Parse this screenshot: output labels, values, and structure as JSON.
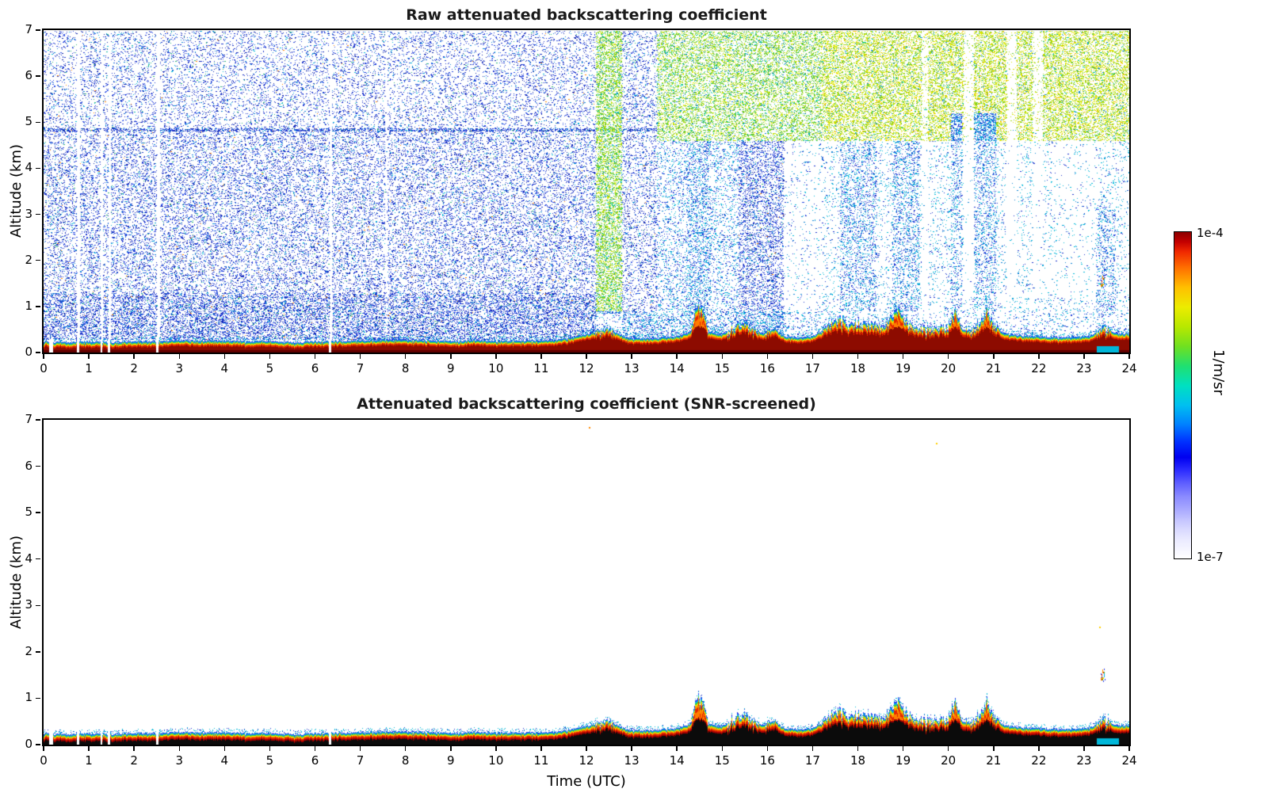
{
  "figure": {
    "background": "#ffffff"
  },
  "chart_data": {
    "type": "heatmap",
    "panels": [
      {
        "title": "Raw attenuated backscattering coefficient"
      },
      {
        "title": "Attenuated backscattering coefficient (SNR-screened)"
      }
    ],
    "x_axis": {
      "label": "Time (UTC)",
      "min": 0,
      "max": 24,
      "ticks": [
        0,
        1,
        2,
        3,
        4,
        5,
        6,
        7,
        8,
        9,
        10,
        11,
        12,
        13,
        14,
        15,
        16,
        17,
        18,
        19,
        20,
        21,
        22,
        23,
        24
      ]
    },
    "y_axis": {
      "label": "Altitude (km)",
      "min": 0,
      "max": 7,
      "ticks": [
        0,
        1,
        2,
        3,
        4,
        5,
        6,
        7
      ]
    },
    "colorbar": {
      "units": "1/m/sr",
      "min_label": "1e-7",
      "max_label": "1e-4",
      "scale": "log",
      "stops": [
        {
          "pos": 0,
          "color": "#ffffff"
        },
        {
          "pos": 3,
          "color": "#f4f4ff"
        },
        {
          "pos": 6,
          "color": "#e9e9ff"
        },
        {
          "pos": 9,
          "color": "#d8d8ff"
        },
        {
          "pos": 12,
          "color": "#c3c3ff"
        },
        {
          "pos": 15,
          "color": "#a9a9ff"
        },
        {
          "pos": 19,
          "color": "#8a8aff"
        },
        {
          "pos": 23,
          "color": "#5f5fff"
        },
        {
          "pos": 27,
          "color": "#2d2dff"
        },
        {
          "pos": 31,
          "color": "#0000f0"
        },
        {
          "pos": 36,
          "color": "#0033ff"
        },
        {
          "pos": 41,
          "color": "#0080ff"
        },
        {
          "pos": 47,
          "color": "#00c0f0"
        },
        {
          "pos": 53,
          "color": "#00e0c0"
        },
        {
          "pos": 59,
          "color": "#20e070"
        },
        {
          "pos": 65,
          "color": "#70e020"
        },
        {
          "pos": 71,
          "color": "#b8e800"
        },
        {
          "pos": 77,
          "color": "#ecec00"
        },
        {
          "pos": 83,
          "color": "#ffc000"
        },
        {
          "pos": 89,
          "color": "#ff7000"
        },
        {
          "pos": 94,
          "color": "#f02800"
        },
        {
          "pos": 97,
          "color": "#c40000"
        },
        {
          "pos": 100,
          "color": "#8b0000"
        }
      ]
    },
    "surface_layer": {
      "t": [
        0,
        0.5,
        1,
        1.5,
        2,
        2.5,
        3,
        3.5,
        4,
        4.5,
        5,
        5.5,
        6,
        6.5,
        7,
        7.5,
        8,
        8.5,
        9,
        9.5,
        10,
        10.5,
        11,
        11.4,
        11.8,
        12.1,
        12.35,
        12.6,
        12.9,
        13.2,
        13.6,
        14,
        14.3,
        14.45,
        14.55,
        14.7,
        15,
        15.3,
        15.5,
        15.7,
        15.9,
        16.1,
        16.4,
        16.7,
        17,
        17.3,
        17.55,
        17.8,
        18,
        18.3,
        18.6,
        18.9,
        19.05,
        19.2,
        19.5,
        19.8,
        20,
        20.15,
        20.3,
        20.5,
        20.7,
        20.85,
        21,
        21.2,
        21.5,
        22,
        22.5,
        23,
        23.2,
        23.4,
        23.6,
        23.8,
        24
      ],
      "top_km": [
        0.25,
        0.22,
        0.24,
        0.22,
        0.25,
        0.24,
        0.27,
        0.25,
        0.26,
        0.24,
        0.25,
        0.22,
        0.24,
        0.25,
        0.26,
        0.28,
        0.28,
        0.26,
        0.25,
        0.26,
        0.25,
        0.25,
        0.26,
        0.28,
        0.35,
        0.42,
        0.5,
        0.45,
        0.32,
        0.3,
        0.32,
        0.35,
        0.45,
        1.05,
        0.95,
        0.45,
        0.4,
        0.55,
        0.62,
        0.5,
        0.42,
        0.52,
        0.35,
        0.32,
        0.35,
        0.55,
        0.72,
        0.62,
        0.65,
        0.58,
        0.62,
        1.0,
        0.7,
        0.55,
        0.5,
        0.52,
        0.55,
        0.92,
        0.55,
        0.48,
        0.6,
        0.95,
        0.6,
        0.42,
        0.38,
        0.35,
        0.32,
        0.35,
        0.38,
        0.55,
        0.45,
        0.4,
        0.42
      ]
    },
    "gap_times": [
      0.14,
      0.18,
      0.76,
      1.28,
      1.45,
      2.52,
      6.34
    ],
    "gap_width": 0.05,
    "band": {
      "edges": [
        [
          "#2a3cf0",
          0.015
        ],
        [
          "#00b4e8",
          0.013
        ],
        [
          "#3ecb3e",
          0.01
        ],
        [
          "#e8e800",
          0.015
        ],
        [
          "#ff9500",
          0.021
        ],
        [
          "#e32400",
          0.03
        ]
      ],
      "core_raw": "#8d0b00",
      "core_screened": "#0b0b0b",
      "interior_warm": "#ff7b00",
      "dark_base_raw": "#600000",
      "ring_screened": "#a40000",
      "bottom_cyan": {
        "t0": 23.28,
        "t1": 23.78,
        "km": 0.13,
        "color": "#00b7d9"
      }
    },
    "noise_field": {
      "regions": [
        {
          "t0": 0,
          "t1": 12.2,
          "z0": 0.28,
          "z1": 1.3,
          "p": 0.3,
          "palette": "blue"
        },
        {
          "t0": 0,
          "t1": 12.2,
          "z0": 1.3,
          "z1": 4.85,
          "p": 0.17,
          "palette": "blue"
        },
        {
          "t0": 0,
          "t1": 12.2,
          "z0": 4.85,
          "z1": 7,
          "p": 0.12,
          "palette": "blue"
        },
        {
          "t0": 0,
          "t1": 13.55,
          "z0": 4.8,
          "z1": 4.88,
          "p": 0.35,
          "palette": "blue"
        },
        {
          "t0": 12.2,
          "t1": 12.78,
          "z0": 0.85,
          "z1": 7,
          "p": 0.38,
          "palette": "green-yellow"
        },
        {
          "t0": 12.78,
          "t1": 13.55,
          "z0": 0.28,
          "z1": 7,
          "p": 0.15,
          "palette": "blue"
        },
        {
          "t0": 13.55,
          "t1": 17.2,
          "z0": 4.6,
          "z1": 7,
          "p": 0.3,
          "palette": "green-yellow"
        },
        {
          "t0": 13.55,
          "t1": 16.35,
          "z0": 0.28,
          "z1": 4.6,
          "p": 0.13,
          "palette": "cyan-blue"
        },
        {
          "t0": 14.2,
          "t1": 14.75,
          "z0": 0.8,
          "z1": 4.6,
          "p": 0.1,
          "palette": "cyan-blue"
        },
        {
          "t0": 15.35,
          "t1": 16.35,
          "z0": 0.28,
          "z1": 4.6,
          "p": 0.09,
          "palette": "blue"
        },
        {
          "t0": 16.35,
          "t1": 17.2,
          "z0": 0.28,
          "z1": 4.6,
          "p": 0.035,
          "palette": "cyan-blue"
        },
        {
          "t0": 17.2,
          "t1": 24,
          "z0": 4.6,
          "z1": 7,
          "p": 0.33,
          "palette": "yellow-green"
        },
        {
          "t0": 17.2,
          "t1": 24,
          "z0": 0.9,
          "z1": 4.6,
          "p": 0.06,
          "palette": "cyan-sparse"
        },
        {
          "t0": 17.6,
          "t1": 18.4,
          "z0": 0.9,
          "z1": 4.6,
          "p": 0.13,
          "palette": "cyan-blue"
        },
        {
          "t0": 18.75,
          "t1": 19.35,
          "z0": 0.9,
          "z1": 4.6,
          "p": 0.13,
          "palette": "cyan-blue"
        },
        {
          "t0": 20.05,
          "t1": 20.3,
          "z0": 0.9,
          "z1": 5.2,
          "p": 0.12,
          "palette": "cyan-blue"
        },
        {
          "t0": 20.55,
          "t1": 21.05,
          "z0": 0.9,
          "z1": 5.2,
          "p": 0.12,
          "palette": "cyan-blue"
        },
        {
          "t0": 23.25,
          "t1": 23.7,
          "z0": 0.9,
          "z1": 3.2,
          "p": 0.12,
          "palette": "cyan-blue"
        },
        {
          "t0": 12.2,
          "t1": 24,
          "z0": 0.28,
          "z1": 0.9,
          "p": 0.08,
          "palette": "cyan-blue"
        }
      ],
      "masks": [
        {
          "t0": 0.73,
          "t1": 0.79,
          "z0": 0,
          "z1": 7,
          "f": 0
        },
        {
          "t0": 1.26,
          "t1": 1.31,
          "z0": 0,
          "z1": 7,
          "f": 0
        },
        {
          "t0": 1.43,
          "t1": 1.48,
          "z0": 0,
          "z1": 7,
          "f": 0
        },
        {
          "t0": 2.49,
          "t1": 2.56,
          "z0": 0,
          "z1": 7,
          "f": 0
        },
        {
          "t0": 6.31,
          "t1": 6.37,
          "z0": 0,
          "z1": 7,
          "f": 0
        },
        {
          "t0": 7.54,
          "t1": 7.59,
          "z0": 0,
          "z1": 7,
          "f": 0.2
        },
        {
          "t0": 19.4,
          "t1": 19.55,
          "z0": 0.9,
          "z1": 7,
          "f": 0.25
        },
        {
          "t0": 20.33,
          "t1": 20.55,
          "z0": 1.2,
          "z1": 7,
          "f": 0.2
        },
        {
          "t0": 21.28,
          "t1": 21.5,
          "z0": 1.2,
          "z1": 7,
          "f": 0.15
        },
        {
          "t0": 21.85,
          "t1": 22.08,
          "z0": 1.2,
          "z1": 7,
          "f": 0.25
        },
        {
          "t0": 22.3,
          "t1": 23.25,
          "z0": 1.2,
          "z1": 4.6,
          "f": 0.5
        }
      ],
      "palettes": {
        "blue": [
          [
            "#1b33cc",
            0.42
          ],
          [
            "#2b50e8",
            0.22
          ],
          [
            "#0d22a8",
            0.15
          ],
          [
            "#0d84d6",
            0.12
          ],
          [
            "#00b7d9",
            0.05
          ],
          [
            "#27b575",
            0.03
          ],
          [
            "#ff8800",
            0.01
          ]
        ],
        "cyan-blue": [
          [
            "#1b33cc",
            0.28
          ],
          [
            "#0d84d6",
            0.26
          ],
          [
            "#00b7d9",
            0.3
          ],
          [
            "#2b50e8",
            0.16
          ]
        ],
        "cyan-sparse": [
          [
            "#00b7d9",
            0.45
          ],
          [
            "#0d84d6",
            0.3
          ],
          [
            "#1b33cc",
            0.25
          ]
        ],
        "green-yellow": [
          [
            "#57c438",
            0.28
          ],
          [
            "#8fd420",
            0.24
          ],
          [
            "#c3e30e",
            0.18
          ],
          [
            "#00c9a0",
            0.12
          ],
          [
            "#eded00",
            0.1
          ],
          [
            "#0d84d6",
            0.08
          ]
        ],
        "yellow-green": [
          [
            "#a8dc10",
            0.28
          ],
          [
            "#d9e300",
            0.24
          ],
          [
            "#6fc92e",
            0.2
          ],
          [
            "#eded00",
            0.12
          ],
          [
            "#ffb300",
            0.06
          ],
          [
            "#00c9a0",
            0.06
          ],
          [
            "#0d84d6",
            0.04
          ]
        ]
      }
    },
    "isolated_points_screened": [
      {
        "t": 12.05,
        "z": 6.85,
        "color": "#ff8800"
      },
      {
        "t": 19.72,
        "z": 6.5,
        "color": "#ffd000"
      },
      {
        "t": 23.33,
        "z": 2.55,
        "color": "#ffd000"
      },
      {
        "t": 23.42,
        "z": 1.5,
        "type": "cluster"
      }
    ],
    "isolated_points_raw": [
      {
        "t": 23.42,
        "z": 1.55,
        "type": "cluster"
      }
    ]
  }
}
